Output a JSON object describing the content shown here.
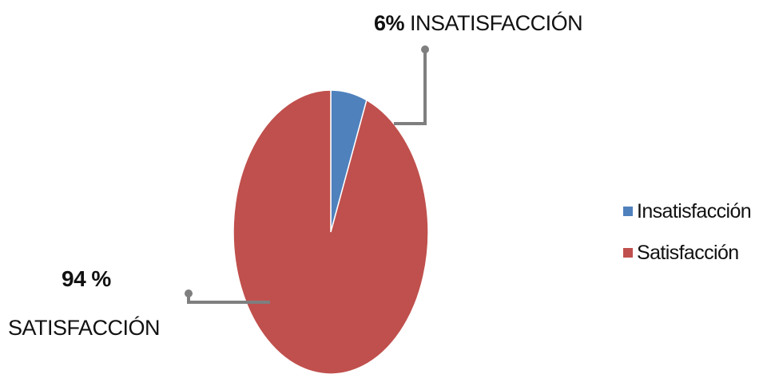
{
  "chart_data": {
    "type": "pie",
    "slices": [
      {
        "label": "Insatisfacción",
        "value": 6,
        "color": "#4f81bd"
      },
      {
        "label": "Satisfacción",
        "value": 94,
        "color": "#c0504d"
      }
    ],
    "data_labels": {
      "insatisfaccion": {
        "value": "6%",
        "name": "INSATISFACCIÓN"
      },
      "satisfaccion": {
        "value": "94 %",
        "name": "SATISFACCIÓN"
      }
    },
    "legend": {
      "placement": "right",
      "entries": [
        "Insatisfacción",
        "Satisfacción"
      ]
    }
  },
  "colors": {
    "leader_line": "#7f7f7f",
    "slice_border": "#ffffff"
  }
}
